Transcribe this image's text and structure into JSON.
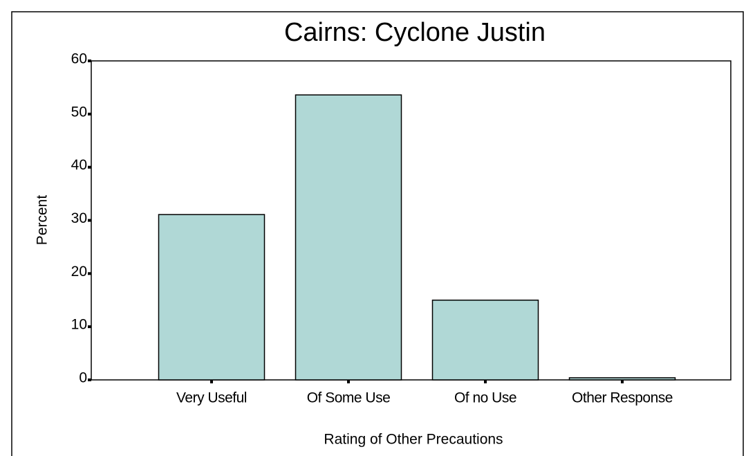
{
  "chart_data": {
    "type": "bar",
    "title": "Cairns: Cyclone Justin",
    "x_label": "Rating of Other Precautions",
    "y_label": "Percent",
    "categories": [
      "Very Useful",
      "Of Some Use",
      "Of no Use",
      "Other Response"
    ],
    "values": [
      31.1,
      53.6,
      15.0,
      0.4
    ],
    "color": "#b0d8d6",
    "ylim": [
      0,
      60
    ],
    "yticks": [
      0,
      10,
      20,
      30,
      40,
      50,
      60
    ],
    "grid": false
  }
}
